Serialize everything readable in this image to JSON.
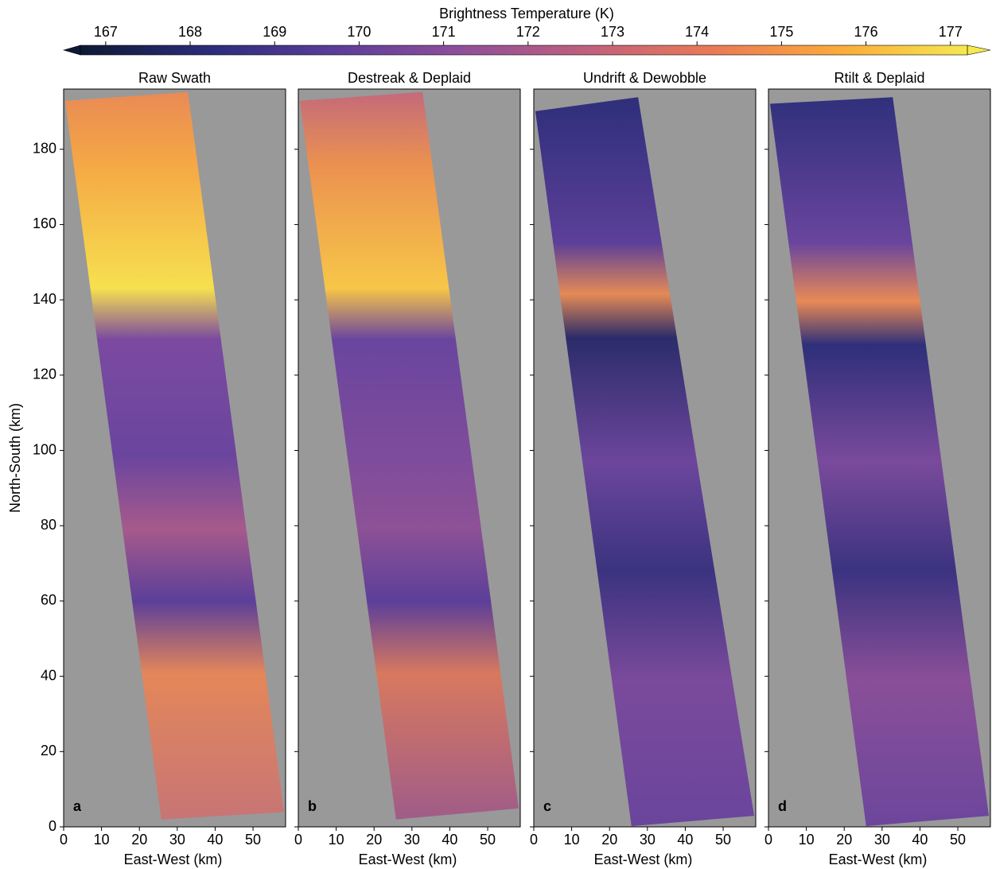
{
  "chart_data": {
    "type": "heatmap",
    "colorbar": {
      "label": "Brightness Temperature (K)",
      "lim": [
        166.7,
        177.2
      ],
      "ticks": [
        167,
        168,
        169,
        170,
        171,
        172,
        173,
        174,
        175,
        176,
        177
      ],
      "colormap": [
        "#0d1a33",
        "#2b2c7a",
        "#5a3d99",
        "#8e4f9a",
        "#c0607d",
        "#ea7a55",
        "#fbab3a",
        "#f6e84f"
      ]
    },
    "panels": [
      {
        "title": "Raw Swath",
        "letter": "a"
      },
      {
        "title": "Destreak & Deplaid",
        "letter": "b"
      },
      {
        "title": "Undrift & Dewobble",
        "letter": "c"
      },
      {
        "title": "Rtilt & Deplaid",
        "letter": "d"
      }
    ],
    "xlabel": "East-West (km)",
    "ylabel": "North-South (km)",
    "xlim": [
      0,
      58.6
    ],
    "ylim": [
      0,
      196
    ],
    "xticks": [
      0,
      10,
      20,
      30,
      40,
      50
    ],
    "yticks": [
      0,
      20,
      40,
      60,
      80,
      100,
      120,
      140,
      160,
      180
    ],
    "background": "#999999"
  }
}
